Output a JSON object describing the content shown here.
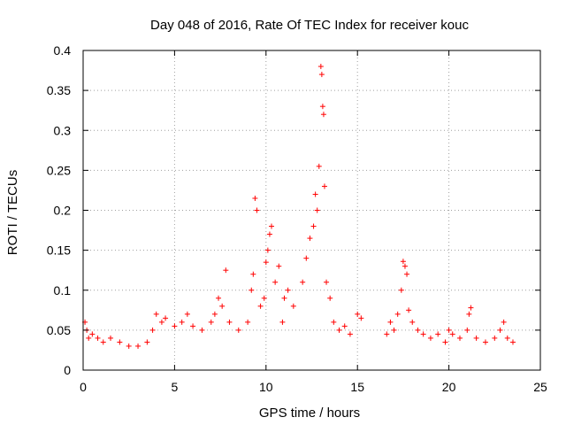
{
  "chart_data": {
    "type": "scatter",
    "title": "Day 048 of 2016, Rate Of TEC Index for receiver kouc",
    "xlabel": "GPS time / hours",
    "ylabel": "ROTI / TECUs",
    "xlim": [
      0,
      25
    ],
    "ylim": [
      0,
      0.4
    ],
    "xticks": [
      "0",
      "5",
      "10",
      "15",
      "20",
      "25"
    ],
    "yticks": [
      "0",
      "0.05",
      "0.1",
      "0.15",
      "0.2",
      "0.25",
      "0.3",
      "0.35",
      "0.4"
    ],
    "grid": true,
    "marker": "+",
    "color": "#ff0000",
    "gap": [
      15.4,
      16.4
    ],
    "series": [
      {
        "x": [
          0.1,
          0.2,
          0.3,
          0.5,
          0.8,
          1.1,
          1.5,
          2.0,
          2.5,
          3.0,
          3.5,
          3.8,
          4.0,
          4.3,
          4.5,
          5.0,
          5.4,
          5.7,
          6.0,
          6.5,
          7.0,
          7.2,
          7.4,
          7.6,
          7.8,
          8.0,
          8.5,
          9.0,
          9.2,
          9.3,
          9.4,
          9.5,
          9.7,
          9.9,
          10.0,
          10.1,
          10.2,
          10.3,
          10.5,
          10.7,
          10.9,
          11.0,
          11.2,
          11.5,
          12.0,
          12.2,
          12.4,
          12.6,
          12.7,
          12.8,
          12.9,
          13.0,
          13.05,
          13.1,
          13.15,
          13.2,
          13.3,
          13.5,
          13.7,
          14.0,
          14.3,
          14.6,
          15.0,
          15.2,
          16.6,
          16.8,
          17.0,
          17.2,
          17.4,
          17.5,
          17.6,
          17.7,
          17.8,
          18.0,
          18.3,
          18.6,
          19.0,
          19.4,
          19.8,
          20.0,
          20.2,
          20.6,
          21.0,
          21.1,
          21.2,
          21.5,
          22.0,
          22.5,
          22.8,
          23.0,
          23.2,
          23.5
        ],
        "y": [
          0.06,
          0.05,
          0.04,
          0.045,
          0.04,
          0.035,
          0.04,
          0.035,
          0.03,
          0.03,
          0.035,
          0.05,
          0.07,
          0.06,
          0.065,
          0.055,
          0.06,
          0.07,
          0.055,
          0.05,
          0.06,
          0.07,
          0.09,
          0.08,
          0.125,
          0.06,
          0.05,
          0.06,
          0.1,
          0.12,
          0.215,
          0.2,
          0.08,
          0.09,
          0.135,
          0.15,
          0.17,
          0.18,
          0.11,
          0.13,
          0.06,
          0.09,
          0.1,
          0.08,
          0.11,
          0.14,
          0.165,
          0.18,
          0.22,
          0.2,
          0.255,
          0.38,
          0.37,
          0.33,
          0.32,
          0.23,
          0.11,
          0.09,
          0.06,
          0.05,
          0.055,
          0.045,
          0.07,
          0.065,
          0.045,
          0.06,
          0.05,
          0.07,
          0.1,
          0.136,
          0.13,
          0.12,
          0.075,
          0.06,
          0.05,
          0.045,
          0.04,
          0.045,
          0.035,
          0.05,
          0.045,
          0.04,
          0.05,
          0.07,
          0.078,
          0.04,
          0.035,
          0.04,
          0.05,
          0.06,
          0.04,
          0.035
        ]
      }
    ]
  }
}
